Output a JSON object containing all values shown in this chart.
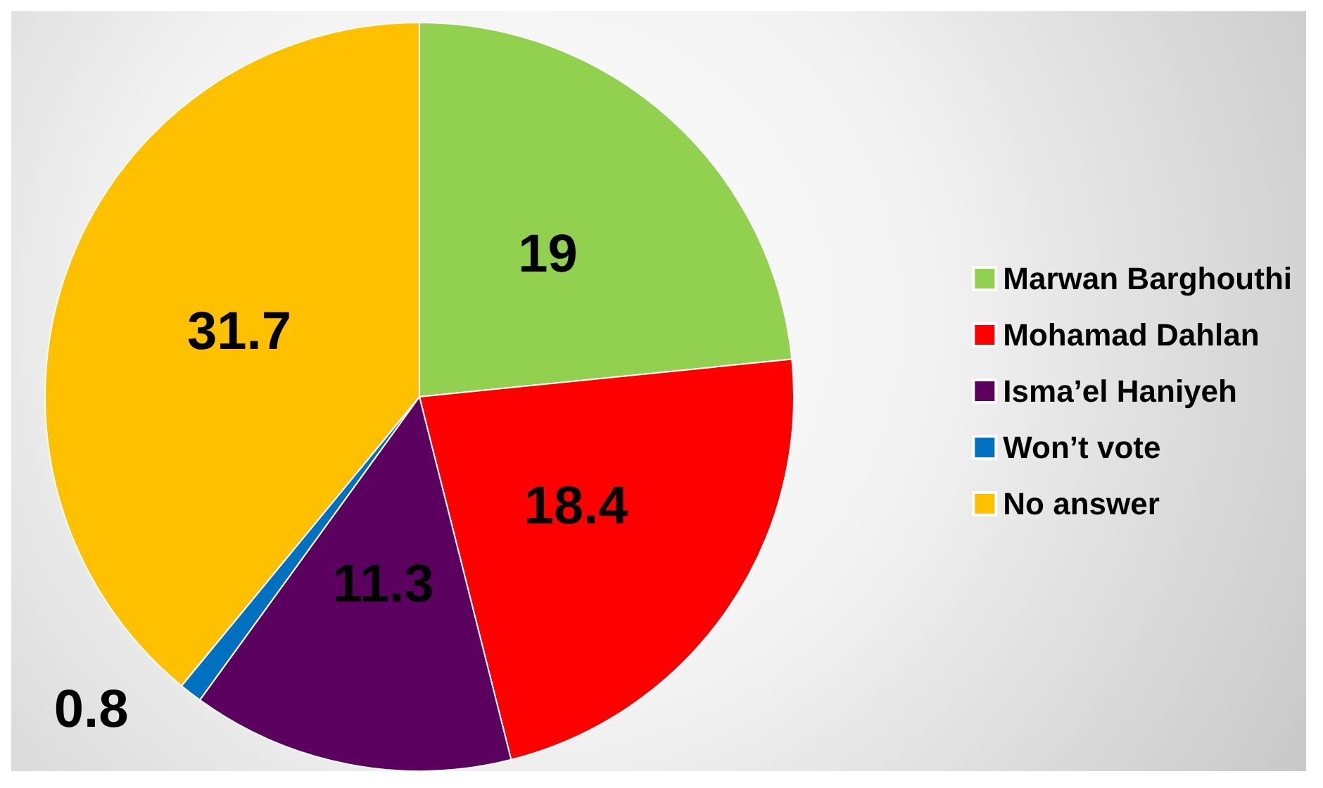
{
  "chart_data": {
    "type": "pie",
    "categories": [
      "Marwan Barghouthi",
      "Mohamad Dahlan",
      "Isma’el Haniyeh",
      "Won’t vote",
      "No answer"
    ],
    "values": [
      19,
      18.4,
      11.3,
      0.8,
      31.7
    ],
    "colors": [
      "#92d050",
      "#ff0000",
      "#5c0060",
      "#0070c0",
      "#ffc000"
    ],
    "data_labels": true,
    "legend": "right"
  }
}
